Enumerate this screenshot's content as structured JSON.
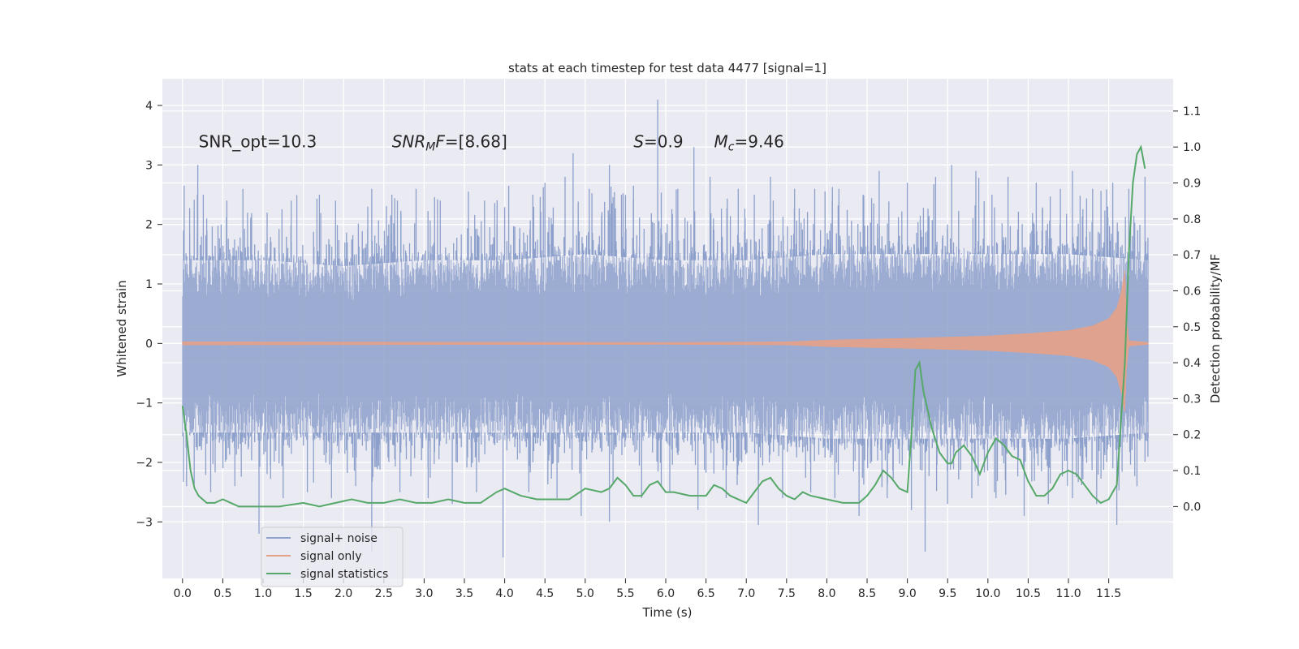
{
  "chart_data": {
    "type": "line",
    "title": "stats at each timestep for test data 4477 [signal=1]",
    "xlabel": "Time (s)",
    "ylabel_left": "Whitened strain",
    "ylabel_right": "Detection probability/MF",
    "xlim": [
      -0.25,
      12.3
    ],
    "ylim_left": [
      -3.95,
      4.45
    ],
    "ylim_right": [
      -0.2,
      1.19
    ],
    "x_ticks": [
      0.0,
      0.5,
      1.0,
      1.5,
      2.0,
      2.5,
      3.0,
      3.5,
      4.0,
      4.5,
      5.0,
      5.5,
      6.0,
      6.5,
      7.0,
      7.5,
      8.0,
      8.5,
      9.0,
      9.5,
      10.0,
      10.5,
      11.0,
      11.5
    ],
    "x_tick_labels": [
      "0.0",
      "0.5",
      "1.0",
      "1.5",
      "2.0",
      "2.5",
      "3.0",
      "3.5",
      "4.0",
      "4.5",
      "5.0",
      "5.5",
      "6.0",
      "6.5",
      "7.0",
      "7.5",
      "8.0",
      "8.5",
      "9.0",
      "9.5",
      "10.0",
      "10.5",
      "11.0",
      "11.5"
    ],
    "y_left_ticks": [
      -3,
      -2,
      -1,
      0,
      1,
      2,
      3,
      4
    ],
    "y_left_tick_labels": [
      "−3",
      "−2",
      "−1",
      "0",
      "1",
      "2",
      "3",
      "4"
    ],
    "y_right_ticks": [
      0.0,
      0.1,
      0.2,
      0.3,
      0.4,
      0.5,
      0.6,
      0.7,
      0.8,
      0.9,
      1.0,
      1.1
    ],
    "y_right_tick_labels": [
      "0.0",
      "0.1",
      "0.2",
      "0.3",
      "0.4",
      "0.5",
      "0.6",
      "0.7",
      "0.8",
      "0.9",
      "1.0",
      "1.1"
    ],
    "grid": true,
    "legend_placement": "lower-left",
    "annotations": [
      {
        "x": 0.2,
        "y": 3.3,
        "parts": [
          {
            "t": "SNR_opt=10.3",
            "italic": false
          }
        ]
      },
      {
        "x": 2.6,
        "y": 3.3,
        "parts": [
          {
            "t": "SNR",
            "italic": true
          },
          {
            "t": "M",
            "italic": true,
            "sub": true
          },
          {
            "t": "F",
            "italic": true
          },
          {
            "t": "=[8.68]",
            "italic": false
          }
        ]
      },
      {
        "x": 5.6,
        "y": 3.3,
        "parts": [
          {
            "t": "S",
            "italic": true
          },
          {
            "t": "=0.9",
            "italic": false
          }
        ]
      },
      {
        "x": 6.6,
        "y": 3.3,
        "parts": [
          {
            "t": "M",
            "italic": true
          },
          {
            "t": "c",
            "italic": true,
            "sub": true
          },
          {
            "t": "=9.46",
            "italic": false
          }
        ]
      }
    ],
    "series": [
      {
        "name": "signal+ noise",
        "axis": "left",
        "color": "#8da0cb",
        "kind": "noise_band",
        "t_range": [
          0.0,
          11.99
        ],
        "envelope_upper": [
          [
            0.0,
            1.4
          ],
          [
            1.0,
            1.4
          ],
          [
            2.0,
            1.3
          ],
          [
            3.0,
            1.4
          ],
          [
            4.0,
            1.4
          ],
          [
            5.0,
            1.5
          ],
          [
            6.0,
            1.4
          ],
          [
            7.0,
            1.4
          ],
          [
            8.0,
            1.5
          ],
          [
            9.0,
            1.5
          ],
          [
            10.0,
            1.5
          ],
          [
            11.0,
            1.5
          ],
          [
            11.99,
            1.4
          ]
        ],
        "envelope_lower": [
          [
            0.0,
            -1.5
          ],
          [
            1.0,
            -1.5
          ],
          [
            2.0,
            -1.5
          ],
          [
            3.0,
            -1.5
          ],
          [
            4.0,
            -1.5
          ],
          [
            5.0,
            -1.5
          ],
          [
            6.0,
            -1.5
          ],
          [
            7.0,
            -1.5
          ],
          [
            8.0,
            -1.6
          ],
          [
            9.0,
            -1.6
          ],
          [
            10.0,
            -1.6
          ],
          [
            11.0,
            -1.6
          ],
          [
            11.99,
            -1.5
          ]
        ],
        "spikes_up": [
          [
            0.02,
            2.65
          ],
          [
            0.19,
            3.0
          ],
          [
            0.3,
            2.1
          ],
          [
            0.55,
            2.4
          ],
          [
            0.75,
            2.6
          ],
          [
            1.05,
            2.2
          ],
          [
            1.35,
            2.4
          ],
          [
            1.7,
            2.5
          ],
          [
            1.9,
            2.4
          ],
          [
            2.3,
            2.3
          ],
          [
            2.35,
            2.6
          ],
          [
            2.6,
            2.5
          ],
          [
            2.9,
            2.6
          ],
          [
            3.2,
            2.4
          ],
          [
            3.55,
            2.55
          ],
          [
            3.75,
            2.4
          ],
          [
            4.05,
            2.65
          ],
          [
            4.35,
            2.5
          ],
          [
            4.5,
            2.7
          ],
          [
            4.75,
            2.8
          ],
          [
            4.85,
            3.2
          ],
          [
            5.05,
            2.6
          ],
          [
            5.3,
            3.0
          ],
          [
            5.45,
            2.5
          ],
          [
            5.6,
            2.65
          ],
          [
            5.9,
            4.1
          ],
          [
            6.15,
            2.6
          ],
          [
            6.35,
            3.3
          ],
          [
            6.55,
            2.8
          ],
          [
            6.9,
            2.6
          ],
          [
            7.1,
            2.5
          ],
          [
            7.3,
            2.8
          ],
          [
            7.6,
            2.6
          ],
          [
            7.85,
            2.6
          ],
          [
            8.15,
            2.6
          ],
          [
            8.45,
            2.5
          ],
          [
            8.65,
            2.9
          ],
          [
            9.0,
            2.7
          ],
          [
            9.35,
            2.8
          ],
          [
            9.55,
            3.0
          ],
          [
            9.85,
            2.9
          ],
          [
            10.05,
            2.5
          ],
          [
            10.25,
            2.8
          ],
          [
            10.6,
            2.7
          ],
          [
            10.9,
            2.6
          ],
          [
            11.05,
            2.9
          ],
          [
            11.3,
            2.6
          ],
          [
            11.55,
            2.7
          ],
          [
            11.75,
            2.6
          ],
          [
            11.95,
            2.8
          ]
        ],
        "spikes_down": [
          [
            0.05,
            -2.4
          ],
          [
            0.35,
            -2.5
          ],
          [
            0.65,
            -2.4
          ],
          [
            0.95,
            -3.2
          ],
          [
            1.25,
            -2.6
          ],
          [
            1.55,
            -2.5
          ],
          [
            1.85,
            -2.6
          ],
          [
            2.15,
            -2.4
          ],
          [
            2.35,
            -3.5
          ],
          [
            2.7,
            -2.5
          ],
          [
            3.05,
            -2.6
          ],
          [
            3.35,
            -2.7
          ],
          [
            3.65,
            -2.5
          ],
          [
            3.98,
            -3.6
          ],
          [
            4.3,
            -2.5
          ],
          [
            4.65,
            -2.6
          ],
          [
            4.95,
            -2.9
          ],
          [
            5.3,
            -3.0
          ],
          [
            5.7,
            -2.6
          ],
          [
            6.05,
            -2.5
          ],
          [
            6.4,
            -2.8
          ],
          [
            6.75,
            -2.6
          ],
          [
            7.15,
            -3.05
          ],
          [
            7.45,
            -2.6
          ],
          [
            7.8,
            -2.5
          ],
          [
            8.1,
            -2.6
          ],
          [
            8.4,
            -2.9
          ],
          [
            8.75,
            -2.6
          ],
          [
            9.05,
            -2.8
          ],
          [
            9.22,
            -3.5
          ],
          [
            9.5,
            -2.7
          ],
          [
            9.8,
            -2.6
          ],
          [
            10.1,
            -2.6
          ],
          [
            10.45,
            -2.9
          ],
          [
            10.75,
            -2.7
          ],
          [
            11.05,
            -2.6
          ],
          [
            11.35,
            -2.7
          ],
          [
            11.6,
            -3.05
          ],
          [
            11.85,
            -2.4
          ]
        ]
      },
      {
        "name": "signal only",
        "axis": "left",
        "color": "#e5a187",
        "kind": "chirp",
        "t_range": [
          0.0,
          11.99
        ],
        "envelope": [
          [
            0.0,
            0.03
          ],
          [
            6.0,
            0.02
          ],
          [
            7.5,
            0.03
          ],
          [
            8.0,
            0.06
          ],
          [
            9.0,
            0.09
          ],
          [
            10.0,
            0.13
          ],
          [
            10.5,
            0.17
          ],
          [
            11.0,
            0.22
          ],
          [
            11.3,
            0.3
          ],
          [
            11.5,
            0.42
          ],
          [
            11.6,
            0.6
          ],
          [
            11.66,
            0.9
          ],
          [
            11.7,
            1.25
          ],
          [
            11.72,
            0.5
          ],
          [
            11.75,
            0.05
          ],
          [
            11.99,
            0.02
          ]
        ]
      },
      {
        "name": "signal statistics",
        "axis": "right",
        "color": "#55a868",
        "kind": "line",
        "points": [
          [
            0.0,
            0.28
          ],
          [
            0.05,
            0.2
          ],
          [
            0.1,
            0.1
          ],
          [
            0.15,
            0.05
          ],
          [
            0.2,
            0.03
          ],
          [
            0.25,
            0.02
          ],
          [
            0.3,
            0.01
          ],
          [
            0.4,
            0.01
          ],
          [
            0.5,
            0.02
          ],
          [
            0.6,
            0.01
          ],
          [
            0.7,
            0.0
          ],
          [
            0.8,
            0.0
          ],
          [
            1.0,
            0.0
          ],
          [
            1.2,
            0.0
          ],
          [
            1.5,
            0.01
          ],
          [
            1.7,
            0.0
          ],
          [
            1.9,
            0.01
          ],
          [
            2.1,
            0.02
          ],
          [
            2.3,
            0.01
          ],
          [
            2.5,
            0.01
          ],
          [
            2.7,
            0.02
          ],
          [
            2.9,
            0.01
          ],
          [
            3.1,
            0.01
          ],
          [
            3.3,
            0.02
          ],
          [
            3.5,
            0.01
          ],
          [
            3.7,
            0.01
          ],
          [
            3.9,
            0.04
          ],
          [
            4.0,
            0.05
          ],
          [
            4.2,
            0.03
          ],
          [
            4.4,
            0.02
          ],
          [
            4.6,
            0.02
          ],
          [
            4.8,
            0.02
          ],
          [
            5.0,
            0.05
          ],
          [
            5.2,
            0.04
          ],
          [
            5.3,
            0.05
          ],
          [
            5.4,
            0.08
          ],
          [
            5.5,
            0.06
          ],
          [
            5.6,
            0.03
          ],
          [
            5.7,
            0.03
          ],
          [
            5.8,
            0.06
          ],
          [
            5.9,
            0.07
          ],
          [
            6.0,
            0.04
          ],
          [
            6.1,
            0.04
          ],
          [
            6.3,
            0.03
          ],
          [
            6.5,
            0.03
          ],
          [
            6.6,
            0.06
          ],
          [
            6.7,
            0.05
          ],
          [
            6.8,
            0.03
          ],
          [
            7.0,
            0.01
          ],
          [
            7.1,
            0.04
          ],
          [
            7.2,
            0.07
          ],
          [
            7.3,
            0.08
          ],
          [
            7.4,
            0.05
          ],
          [
            7.5,
            0.03
          ],
          [
            7.6,
            0.02
          ],
          [
            7.7,
            0.04
          ],
          [
            7.8,
            0.03
          ],
          [
            8.0,
            0.02
          ],
          [
            8.2,
            0.01
          ],
          [
            8.4,
            0.01
          ],
          [
            8.5,
            0.03
          ],
          [
            8.6,
            0.06
          ],
          [
            8.7,
            0.1
          ],
          [
            8.8,
            0.08
          ],
          [
            8.9,
            0.05
          ],
          [
            9.0,
            0.04
          ],
          [
            9.05,
            0.2
          ],
          [
            9.1,
            0.38
          ],
          [
            9.15,
            0.4
          ],
          [
            9.2,
            0.32
          ],
          [
            9.3,
            0.22
          ],
          [
            9.4,
            0.15
          ],
          [
            9.5,
            0.12
          ],
          [
            9.55,
            0.12
          ],
          [
            9.6,
            0.15
          ],
          [
            9.7,
            0.17
          ],
          [
            9.8,
            0.14
          ],
          [
            9.9,
            0.09
          ],
          [
            10.0,
            0.15
          ],
          [
            10.1,
            0.19
          ],
          [
            10.2,
            0.17
          ],
          [
            10.3,
            0.14
          ],
          [
            10.4,
            0.13
          ],
          [
            10.5,
            0.07
          ],
          [
            10.6,
            0.03
          ],
          [
            10.7,
            0.03
          ],
          [
            10.8,
            0.05
          ],
          [
            10.9,
            0.09
          ],
          [
            11.0,
            0.1
          ],
          [
            11.1,
            0.09
          ],
          [
            11.2,
            0.06
          ],
          [
            11.3,
            0.03
          ],
          [
            11.4,
            0.01
          ],
          [
            11.5,
            0.02
          ],
          [
            11.6,
            0.06
          ],
          [
            11.7,
            0.4
          ],
          [
            11.75,
            0.7
          ],
          [
            11.8,
            0.9
          ],
          [
            11.85,
            0.98
          ],
          [
            11.9,
            1.0
          ],
          [
            11.95,
            0.94
          ]
        ]
      }
    ]
  }
}
